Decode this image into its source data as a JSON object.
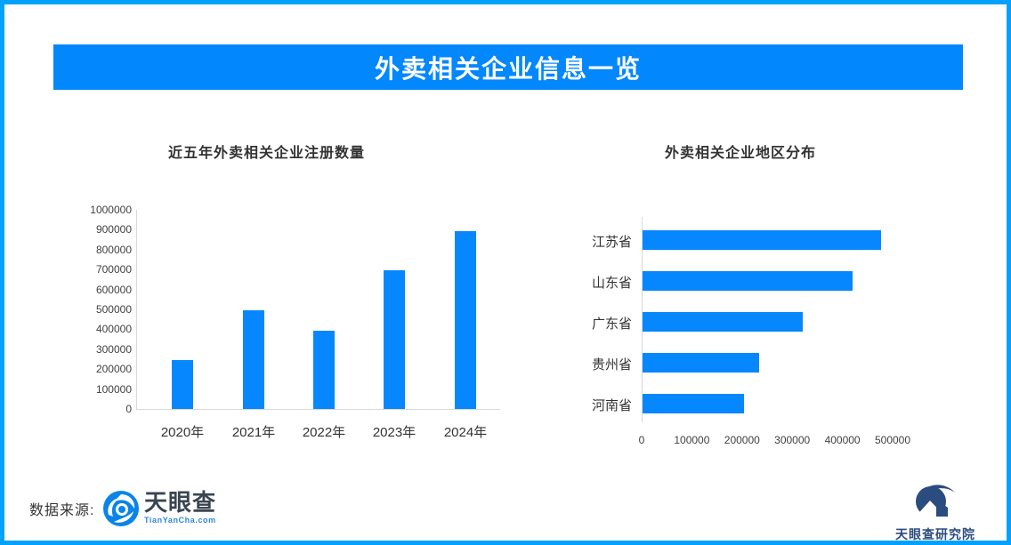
{
  "page": {
    "border_color": "#02A1FE"
  },
  "banner": {
    "title": "外卖相关企业信息一览",
    "bg_color": "#0287FD",
    "text_color": "#FFFFFF"
  },
  "chart_data": [
    {
      "type": "bar",
      "orientation": "vertical",
      "title": "近五年外卖相关企业注册数量",
      "categories": [
        "2020年",
        "2021年",
        "2022年",
        "2023年",
        "2024年"
      ],
      "values": [
        245000,
        495000,
        395000,
        695000,
        895000
      ],
      "ylabel": "",
      "xlabel": "",
      "ylim": [
        0,
        1000000
      ],
      "yticks": [
        0,
        100000,
        200000,
        300000,
        400000,
        500000,
        600000,
        700000,
        800000,
        900000,
        1000000
      ],
      "grid": false,
      "legend": false,
      "bar_color": "#0787FD"
    },
    {
      "type": "bar",
      "orientation": "horizontal",
      "title": "外卖相关企业地区分布",
      "categories": [
        "江苏省",
        "山东省",
        "广东省",
        "贵州省",
        "河南省"
      ],
      "values": [
        475000,
        418000,
        320000,
        232000,
        202000
      ],
      "xlabel": "",
      "ylabel": "",
      "xlim": [
        0,
        500000
      ],
      "xticks": [
        0,
        100000,
        200000,
        300000,
        400000,
        500000
      ],
      "grid": false,
      "legend": false,
      "bar_color": "#0787FD"
    }
  ],
  "footer": {
    "source_label": "数据来源:",
    "tianyancha_name": "天眼查",
    "tianyancha_domain": "TianYanCha.com",
    "research_institute": "天眼查研究院"
  }
}
